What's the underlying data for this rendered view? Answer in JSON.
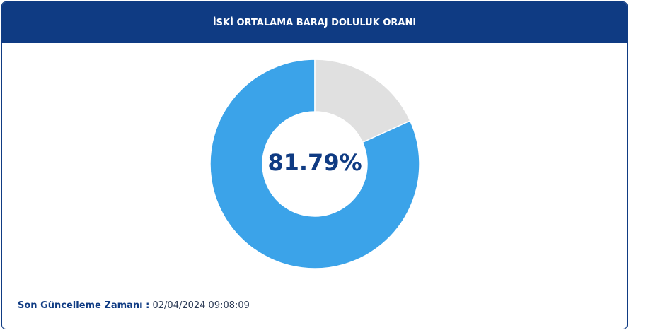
{
  "chart_data": {
    "type": "pie",
    "title": "İSKİ ORTALAMA BARAJ DOLULUK ORANI",
    "values": [
      81.79,
      18.21
    ],
    "value_labels": [
      "81.79%",
      null
    ],
    "colors": [
      "#3ba3e9",
      "#e0e0e0"
    ]
  },
  "footer": {
    "label": "Son Güncelleme Zamanı :",
    "timestamp": "02/04/2024 09:08:09"
  }
}
